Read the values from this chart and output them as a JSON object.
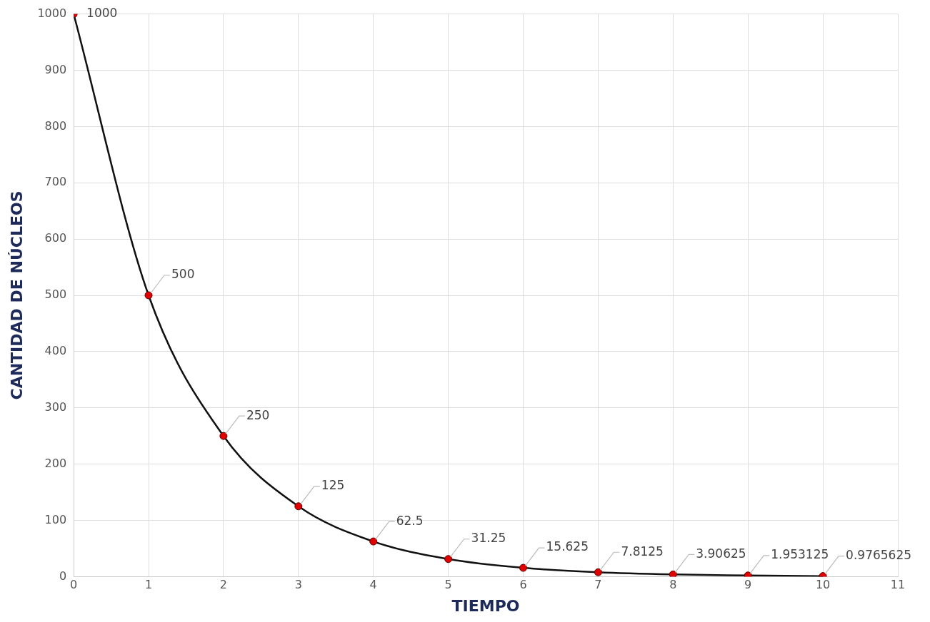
{
  "chart_data": {
    "type": "line",
    "xlabel": "TIEMPO",
    "ylabel": "CANTIDAD DE NÚCLEOS",
    "x": [
      0,
      1,
      2,
      3,
      4,
      5,
      6,
      7,
      8,
      9,
      10
    ],
    "series": [
      {
        "color": "#111111",
        "colors": [
          "#e00000",
          "#e00000",
          "#e00000",
          "#e00000",
          "#e00000",
          "#e00000",
          "#e00000",
          "#e00000",
          "#e00000",
          "#e00000",
          "#e00000"
        ],
        "values": [
          1000,
          500,
          250,
          125,
          62.5,
          31.25,
          15.625,
          7.8125,
          3.90625,
          1.953125,
          0.9765625
        ]
      }
    ],
    "xlim": [
      0,
      11
    ],
    "xticks": [
      0,
      1,
      2,
      3,
      4,
      5,
      6,
      7,
      8,
      9,
      10,
      11
    ],
    "ylim": [
      0,
      1000
    ],
    "yticks": [
      0,
      100,
      200,
      300,
      400,
      500,
      600,
      700,
      800,
      900,
      1000
    ],
    "grid": true,
    "legend": false,
    "marker": "circle",
    "line_style": "solid",
    "data_labels": true
  }
}
